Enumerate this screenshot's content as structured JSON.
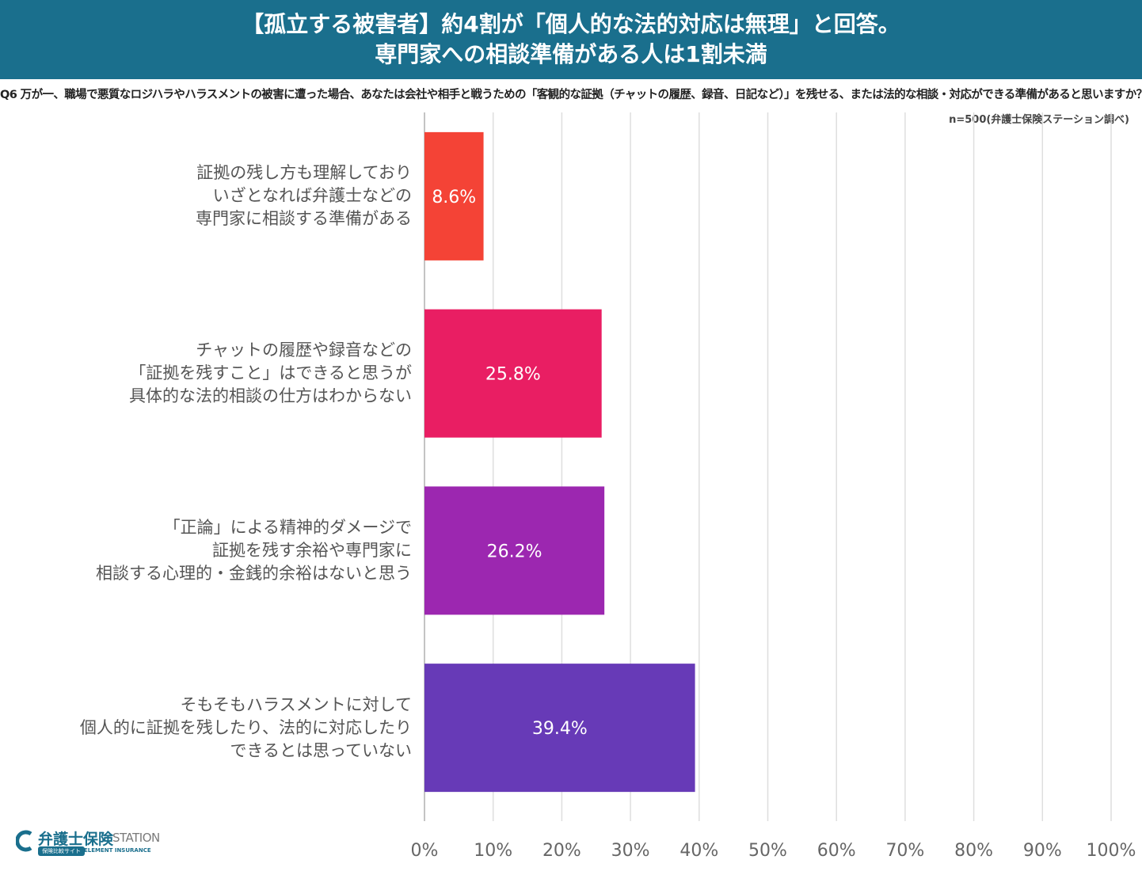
{
  "header": {
    "title_line1": "【孤立する被害者】約4割が「個人的な法的対応は無理」と回答。",
    "title_line2": "専門家への相談準備がある人は1割未満",
    "bg_color": "#1a6f8d"
  },
  "question": "Q6 万が一、職場で悪質なロジハラやハラスメントの被害に遭った場合、あなたは会社や相手と戦うための「客観的な証拠（チャットの履歴、録音、日記など）」を残せる、または法的な相談・対応ができる準備があると思いますか？",
  "sample_note": "n=500(弁護士保険ステーション調べ)",
  "chart_data": {
    "type": "bar",
    "orientation": "horizontal",
    "categories": [
      [
        "証拠の残し方も理解しており",
        "いざとなれば弁護士などの",
        "専門家に相談する準備がある"
      ],
      [
        "チャットの履歴や録音などの",
        "「証拠を残すこと」はできると思うが",
        "具体的な法的相談の仕方はわからない"
      ],
      [
        "「正論」による精神的ダメージで",
        "証拠を残す余裕や専門家に",
        "相談する心理的・金銭的余裕はないと思う"
      ],
      [
        "そもそもハラスメントに対して",
        "個人的に証拠を残したり、法的に対応したり",
        "できるとは思っていない"
      ]
    ],
    "values": [
      8.6,
      25.8,
      26.2,
      39.4
    ],
    "value_labels": [
      "8.6%",
      "25.8%",
      "26.2%",
      "39.4%"
    ],
    "colors": [
      "#f44336",
      "#e91e63",
      "#9c27b0",
      "#673ab7"
    ],
    "xlim": [
      0,
      100
    ],
    "x_ticks": [
      0,
      10,
      20,
      30,
      40,
      50,
      60,
      70,
      80,
      90,
      100
    ],
    "x_tick_labels": [
      "0%",
      "10%",
      "20%",
      "30%",
      "40%",
      "50%",
      "60%",
      "70%",
      "80%",
      "90%",
      "100%"
    ],
    "grid": true
  },
  "logo": {
    "name": "弁護士保険",
    "station": "STATION",
    "badge": "保険比較サイト",
    "sub": "ELEMENT INSURANCE"
  }
}
